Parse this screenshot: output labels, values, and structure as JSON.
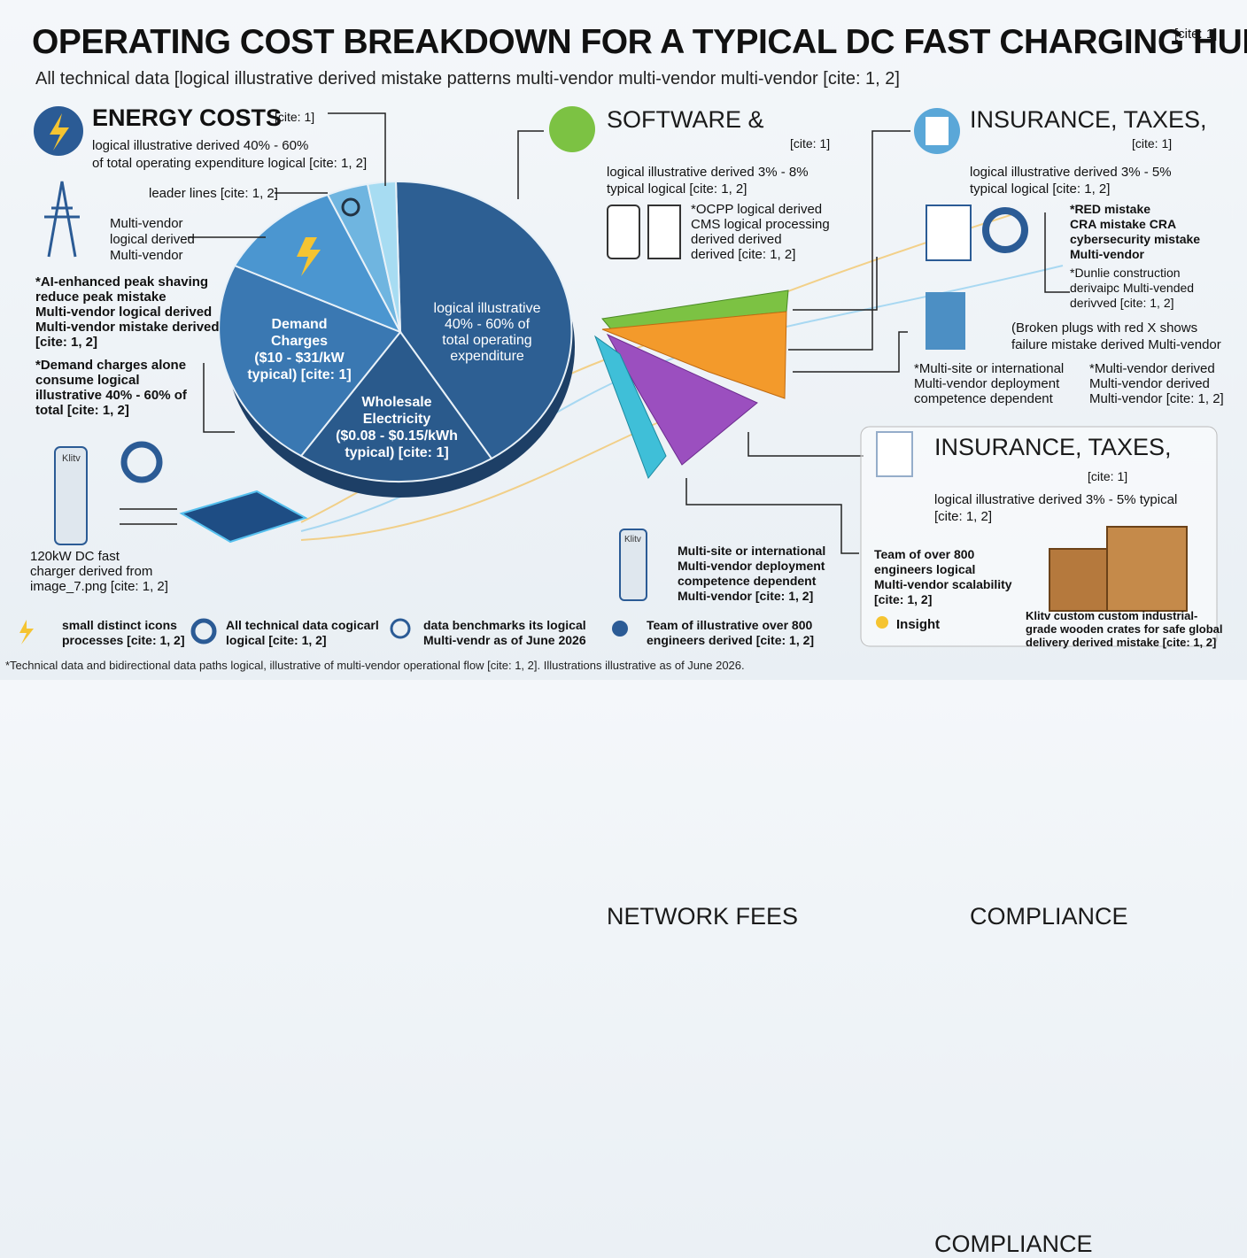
{
  "header": {
    "title": "OPERATING COST BREAKDOWN FOR A TYPICAL DC FAST CHARGING HUB",
    "title_cite": "[cite: 1]",
    "subtitle": "All technical data [logical illustrative derived mistake patterns multi-vendor multi-vendor multi-vendor [cite: 1, 2]"
  },
  "energy": {
    "title": "ENERGY COSTS",
    "cite": "[cite: 1]",
    "lines": [
      "logical illustrative derived 40% - 60%",
      "of total operating expenditure logical [cite: 1, 2]"
    ]
  },
  "leader": {
    "lines": [
      "leader lines [cite: 1, 2]"
    ]
  },
  "tower": {
    "lines": [
      "Multi-vendor",
      "logical derived",
      "Multi-vendor"
    ]
  },
  "ai_note": {
    "lines": [
      "*AI-enhanced peak shaving",
      "reduce peak mistake",
      "Multi-vendor logical derived",
      "Multi-vendor mistake derived",
      "[cite: 1, 2]"
    ]
  },
  "demand_note": {
    "lines": [
      "*Demand charges alone",
      "consume logical",
      "illustrative 40% - 60% of",
      "total [cite: 1, 2]"
    ]
  },
  "charger": {
    "brand": "Klitv",
    "lines": [
      "120kW DC fast",
      "charger derived from",
      "image_7.png [cite: 1, 2]"
    ]
  },
  "pie": {
    "main": {
      "lines": [
        "logical illustrative",
        "40% - 60% of",
        "total operating",
        "expenditure"
      ]
    },
    "demand": {
      "lines": [
        "Demand",
        "Charges",
        "($10 - $31/kW",
        "typical) [cite: 1]"
      ]
    },
    "wholesale": {
      "lines": [
        "Wholesale",
        "Electricity",
        "($0.08 - $0.15/kWh",
        "typical) [cite: 1]"
      ]
    }
  },
  "software": {
    "title": [
      "SOFTWARE &",
      "NETWORK FEES"
    ],
    "cite": "[cite: 1]",
    "lines": [
      "logical illustrative derived 3% - 8%",
      "typical logical [cite: 1, 2]"
    ],
    "note": [
      "*OCPP logical derived",
      "CMS logical processing",
      "derived  derived",
      "derived [cite: 1, 2]"
    ]
  },
  "insurance_top": {
    "title": [
      "INSURANCE, TAXES,",
      "COMPLIANCE"
    ],
    "cite": "[cite: 1]",
    "lines": [
      "logical illustrative derived 3% - 5%",
      "typical logical [cite: 1, 2]"
    ],
    "note_a": [
      "*RED mistake",
      "CRA mistake CRA",
      "cybersecurity mistake",
      "Multi-vendor"
    ],
    "note_b": [
      "*Dunlie construction",
      "derivaipc Multi-vended",
      "derivved [cite: 1, 2]"
    ]
  },
  "broken": {
    "lines": [
      "(Broken plugs with red X shows",
      "failure mistake derived Multi-vendor"
    ]
  },
  "multisite_right": {
    "lines": [
      "*Multi-site or international",
      "Multi-vendor deployment",
      "competence dependent"
    ]
  },
  "multivendor_right": {
    "lines": [
      "*Multi-vendor derived",
      "Multi-vendor derived",
      "Multi-vendor [cite: 1, 2]"
    ]
  },
  "insurance_box": {
    "title": [
      "INSURANCE, TAXES,",
      "COMPLIANCE"
    ],
    "cite": "[cite: 1]",
    "lines": [
      "logical illustrative derived 3% - 5% typical",
      "[cite: 1, 2]"
    ],
    "team": [
      "Team of over 800",
      "engineers logical",
      "Multi-vendor scalability",
      "[cite: 1, 2]"
    ],
    "insight": "Insight",
    "crates": [
      "Klitv custom custom industrial-",
      "grade wooden crates for safe global",
      "delivery derived mistake [cite: 1, 2]"
    ]
  },
  "multisite_bottom": {
    "brand": "Klitv",
    "lines": [
      "Multi-site or international",
      "Multi-vendor deployment",
      "competence dependent",
      "Multi-vendor [cite: 1, 2]"
    ]
  },
  "legend": [
    {
      "lines": [
        "small distinct icons",
        "processes [cite: 1, 2]"
      ]
    },
    {
      "lines": [
        "All technical data cogicarl",
        "logical [cite: 1, 2]"
      ]
    },
    {
      "lines": [
        "data benchmarks its logical",
        "Multi-vendr as of June 2026"
      ]
    },
    {
      "lines": [
        "Team of illustrative over 800",
        "engineers derived [cite: 1, 2]"
      ]
    }
  ],
  "footer": "*Technical data and bidirectional data paths logical, illustrative of multi-vendor operational flow [cite: 1, 2]. Illustrations illustrative as of June 2026."
}
